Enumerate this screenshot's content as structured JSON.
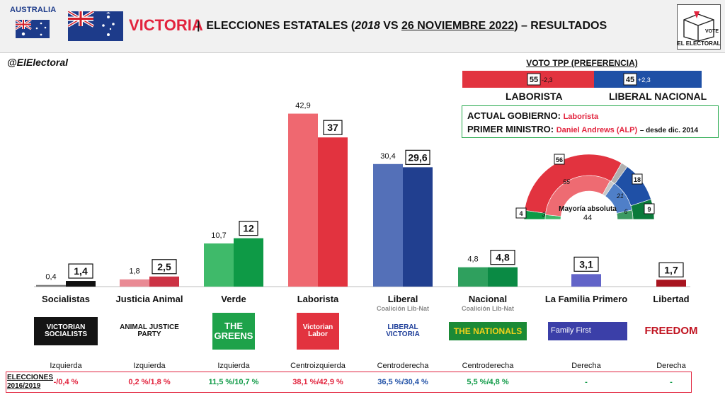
{
  "header": {
    "country": "AUSTRALIA",
    "title_state": "VICTORIA",
    "title_sep": "|",
    "title_main": "ELECCIONES ESTATALES (",
    "title_year": "2018",
    "title_vs": " VS ",
    "title_date": "26 NOVIEMBRE 2022",
    "title_end": ") – RESULTADOS",
    "handle": "@ElElectoral",
    "logo_vote": "VOTE",
    "logo_name": "EL ELECTORAL"
  },
  "tpp": {
    "title": "VOTO TPP (PREFERENCIA)",
    "left_value": "55",
    "left_change": "-2,3",
    "left_label": "LABORISTA",
    "right_value": "45",
    "right_change": "+2,3",
    "right_label": "LIBERAL NACIONAL",
    "left_color": "#e2333f",
    "right_color": "#1f50a6"
  },
  "government": {
    "gov_label": "ACTUAL GOBIERNO:",
    "gov_value": "Laborista",
    "pm_label": "PRIMER MINISTRO:",
    "pm_value": "Daniel Andrews (ALP)",
    "pm_note": "– desde dic. 2014"
  },
  "parliament": {
    "majority_label": "Mayoría absoluta",
    "majority_value": "44",
    "new_seats": [
      {
        "party": "Verde",
        "seats": 4,
        "color": "#0e9a46"
      },
      {
        "party": "Laborista",
        "seats": 56,
        "color": "#e2333f"
      },
      {
        "party": "Otros",
        "seats": 3,
        "color": "#b0b0b0"
      },
      {
        "party": "Liberal",
        "seats": 18,
        "color": "#1f50a6"
      },
      {
        "party": "Nacional",
        "seats": 9,
        "color": "#0a7a3a"
      }
    ],
    "old_seats": [
      {
        "party": "Verde",
        "seats": 3,
        "color": "#3fb86a"
      },
      {
        "party": "Laborista",
        "seats": 55,
        "color": "#ee6b72"
      },
      {
        "party": "Otros",
        "seats": 3,
        "color": "#c8c8c8"
      },
      {
        "party": "Liberal",
        "seats": 21,
        "color": "#4f7fc8"
      },
      {
        "party": "Nacional",
        "seats": 6,
        "color": "#3c9a62"
      }
    ]
  },
  "chart_data": {
    "type": "bar",
    "title": "",
    "xlabel": "",
    "ylabel": "",
    "categories": [
      "Socialistas",
      "Justicia Animal",
      "Verde",
      "Laborista",
      "Liberal",
      "Nacional",
      "La Familia Primero",
      "Libertad"
    ],
    "subtitles": [
      "",
      "",
      "",
      "",
      "Coalición Lib-Nat",
      "Coalición Lib-Nat",
      "",
      ""
    ],
    "series": [
      {
        "name": "2018",
        "values": [
          0.4,
          1.8,
          10.7,
          42.9,
          30.4,
          4.8,
          null,
          null
        ]
      },
      {
        "name": "2022",
        "values": [
          1.4,
          2.5,
          12,
          37,
          29.6,
          4.8,
          3.1,
          1.7
        ]
      }
    ],
    "labels_2018": [
      "0,4",
      "1,8",
      "10,7",
      "42,9",
      "30,4",
      "4,8",
      "",
      ""
    ],
    "labels_2022": [
      "1,4",
      "2,5",
      "12",
      "37",
      "29,6",
      "4,8",
      "3,1",
      "1,7"
    ],
    "colors_2018": [
      "#7a7a7a",
      "#e98a94",
      "#3fba6a",
      "#ef6870",
      "#5470b8",
      "#2fa05e",
      "#7b7fd0",
      "#c2323a"
    ],
    "colors_2022": [
      "#111111",
      "#cc3345",
      "#0e9a46",
      "#e2333f",
      "#213f8f",
      "#0a8a44",
      "#6264c8",
      "#a8141f"
    ],
    "ylim": [
      0,
      45
    ],
    "ideology": [
      "Izquierda",
      "Izquierda",
      "Izquierda",
      "Centroizquierda",
      "Centroderecha",
      "Centroderecha",
      "Derecha",
      "Derecha"
    ],
    "prev_elections_label": "ELECCIONES 2016/2019",
    "prev_elections": [
      "-/0,4 %",
      "0,2 %/1,8 %",
      "11,5 %/10,7 %",
      "38,1 %/42,9 %",
      "36,5 %/30,4 %",
      "5,5 %/4,8 %",
      "-",
      "-"
    ],
    "prev_colors": [
      "#e2233d",
      "#e2233d",
      "#0e9a46",
      "#e2233d",
      "#1f50a6",
      "#0e9a46",
      "#0e9a46",
      "#0e9a46"
    ]
  },
  "party_logos": [
    {
      "text": "VICTORIAN SOCIALISTS",
      "bg": "#141414",
      "fg": "#ffffff"
    },
    {
      "text": "ANIMAL JUSTICE PARTY",
      "bg": "#ffffff",
      "fg": "#111111"
    },
    {
      "text": "THE GREENS",
      "bg": "#1ea24a",
      "fg": "#ffffff"
    },
    {
      "text": "Victorian Labor",
      "bg": "#e2333f",
      "fg": "#ffffff"
    },
    {
      "text": "LIBERAL VICTORIA",
      "bg": "#ffffff",
      "fg": "#1f3f9a"
    },
    {
      "text": "THE NATIONALS",
      "bg": "#1b8a36",
      "fg": "#f3d21a"
    },
    {
      "text": "Family First",
      "bg": "#3b3fa8",
      "fg": "#ffffff"
    },
    {
      "text": "FREEDOM",
      "bg": "#ffffff",
      "fg": "#c0121f"
    }
  ]
}
